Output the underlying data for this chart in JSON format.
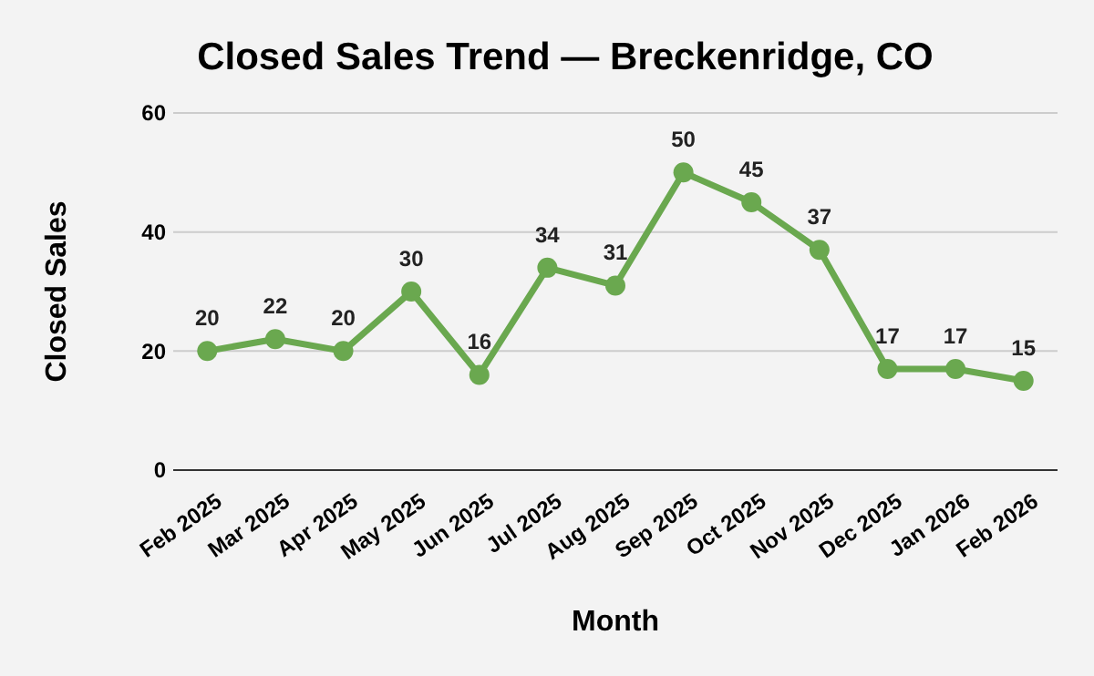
{
  "chart_data": {
    "type": "line",
    "title": "Closed Sales Trend — Breckenridge, CO",
    "xlabel": "Month",
    "ylabel": "Closed Sales",
    "categories": [
      "Feb 2025",
      "Mar 2025",
      "Apr 2025",
      "May 2025",
      "Jun 2025",
      "Jul 2025",
      "Aug 2025",
      "Sep 2025",
      "Oct 2025",
      "Nov 2025",
      "Dec 2025",
      "Jan 2026",
      "Feb 2026"
    ],
    "series": [
      {
        "color": "#6aa84f",
        "values": [
          20,
          22,
          20,
          30,
          16,
          34,
          31,
          50,
          45,
          37,
          17,
          17,
          15
        ]
      }
    ],
    "ylim": [
      0,
      60
    ],
    "yticks": [
      0,
      20,
      40,
      60
    ],
    "grid": "y",
    "marker": "circle",
    "line_style": "solid",
    "data_labels": true
  }
}
